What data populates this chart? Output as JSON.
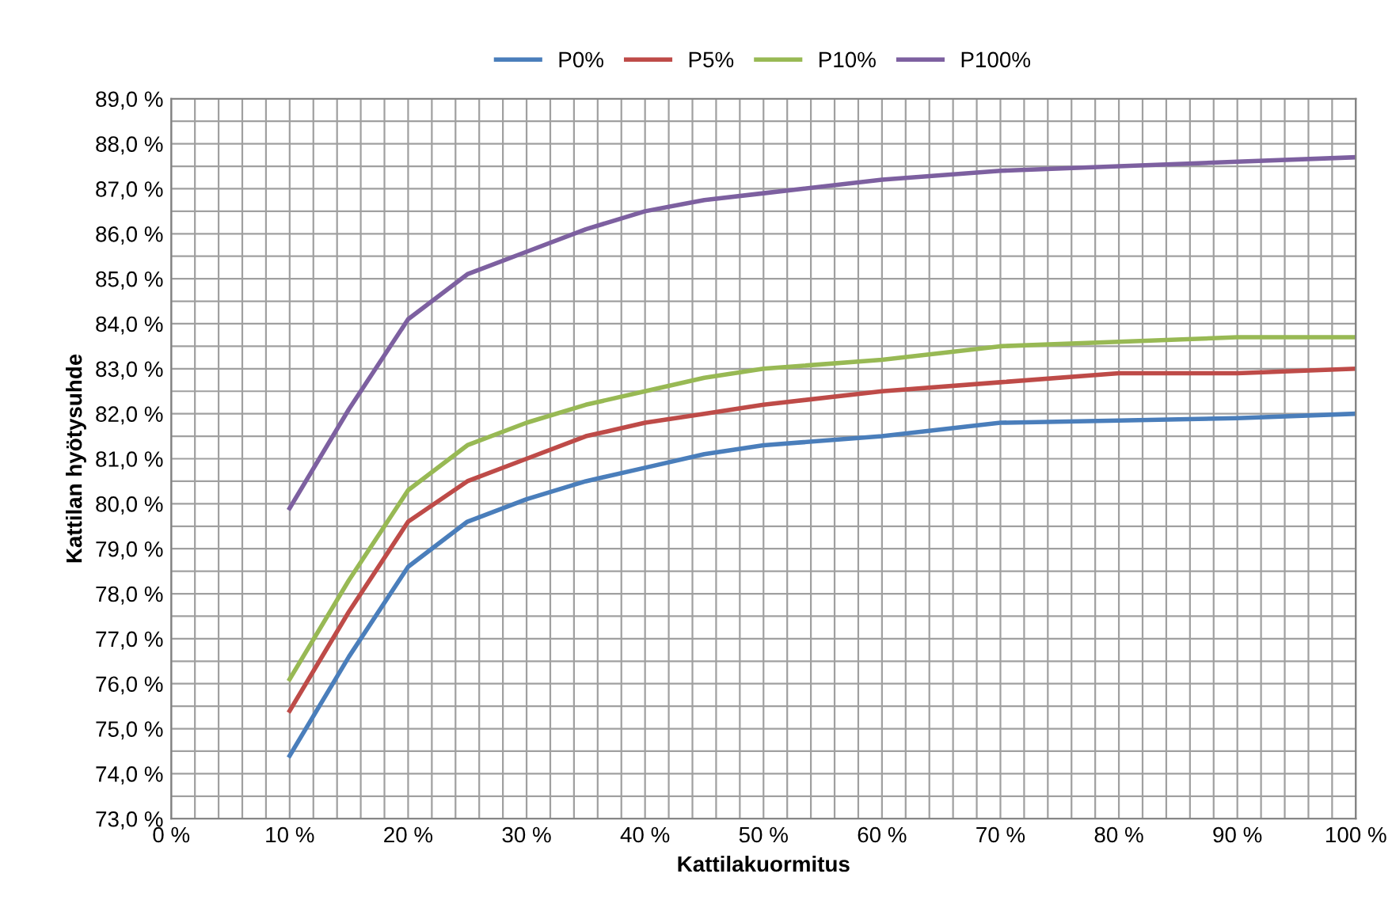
{
  "chart_data": {
    "type": "line",
    "xlabel": "Kattilakuormitus",
    "ylabel": "Kattilan hyötysuhde",
    "x": [
      10,
      15,
      20,
      25,
      30,
      35,
      40,
      45,
      50,
      60,
      70,
      80,
      90,
      100
    ],
    "series": [
      {
        "name": "P0%",
        "color": "#4a7ebb",
        "values": [
          74.4,
          76.6,
          78.6,
          79.6,
          80.1,
          80.5,
          80.8,
          81.1,
          81.3,
          81.5,
          81.8,
          81.85,
          81.9,
          82.0
        ]
      },
      {
        "name": "P5%",
        "color": "#be4b48",
        "values": [
          75.4,
          77.6,
          79.6,
          80.5,
          81.0,
          81.5,
          81.8,
          82.0,
          82.2,
          82.5,
          82.7,
          82.9,
          82.9,
          83.0
        ]
      },
      {
        "name": "P10%",
        "color": "#98b954",
        "values": [
          76.1,
          78.3,
          80.3,
          81.3,
          81.8,
          82.2,
          82.5,
          82.8,
          83.0,
          83.2,
          83.5,
          83.6,
          83.7,
          83.7
        ]
      },
      {
        "name": "P100%",
        "color": "#7d60a0",
        "values": [
          79.9,
          82.1,
          84.1,
          85.1,
          85.6,
          86.1,
          86.5,
          86.75,
          86.9,
          87.2,
          87.4,
          87.5,
          87.6,
          87.7
        ]
      }
    ],
    "xlim": [
      0,
      100
    ],
    "xticks": [
      {
        "value": 0,
        "label": "0 %"
      },
      {
        "value": 2,
        "label": null
      },
      {
        "value": 4,
        "label": null
      },
      {
        "value": 6,
        "label": null
      },
      {
        "value": 8,
        "label": null
      },
      {
        "value": 10,
        "label": "10 %"
      },
      {
        "value": 12,
        "label": null
      },
      {
        "value": 14,
        "label": null
      },
      {
        "value": 16,
        "label": null
      },
      {
        "value": 18,
        "label": null
      },
      {
        "value": 20,
        "label": "20 %"
      },
      {
        "value": 22,
        "label": null
      },
      {
        "value": 24,
        "label": null
      },
      {
        "value": 26,
        "label": null
      },
      {
        "value": 28,
        "label": null
      },
      {
        "value": 30,
        "label": "30 %"
      },
      {
        "value": 32,
        "label": null
      },
      {
        "value": 34,
        "label": null
      },
      {
        "value": 36,
        "label": null
      },
      {
        "value": 38,
        "label": null
      },
      {
        "value": 40,
        "label": "40 %"
      },
      {
        "value": 42,
        "label": null
      },
      {
        "value": 44,
        "label": null
      },
      {
        "value": 46,
        "label": null
      },
      {
        "value": 48,
        "label": null
      },
      {
        "value": 50,
        "label": "50 %"
      },
      {
        "value": 52,
        "label": null
      },
      {
        "value": 54,
        "label": null
      },
      {
        "value": 56,
        "label": null
      },
      {
        "value": 58,
        "label": null
      },
      {
        "value": 60,
        "label": "60 %"
      },
      {
        "value": 62,
        "label": null
      },
      {
        "value": 64,
        "label": null
      },
      {
        "value": 66,
        "label": null
      },
      {
        "value": 68,
        "label": null
      },
      {
        "value": 70,
        "label": "70 %"
      },
      {
        "value": 72,
        "label": null
      },
      {
        "value": 74,
        "label": null
      },
      {
        "value": 76,
        "label": null
      },
      {
        "value": 78,
        "label": null
      },
      {
        "value": 80,
        "label": "80 %"
      },
      {
        "value": 82,
        "label": null
      },
      {
        "value": 84,
        "label": null
      },
      {
        "value": 86,
        "label": null
      },
      {
        "value": 88,
        "label": null
      },
      {
        "value": 90,
        "label": "90 %"
      },
      {
        "value": 92,
        "label": null
      },
      {
        "value": 94,
        "label": null
      },
      {
        "value": 96,
        "label": null
      },
      {
        "value": 98,
        "label": null
      },
      {
        "value": 100,
        "label": "100 %"
      }
    ],
    "ylim": [
      73,
      89
    ],
    "yticks": [
      {
        "value": 73,
        "label": "73,0 %"
      },
      {
        "value": 73.5,
        "label": null
      },
      {
        "value": 74,
        "label": "74,0 %"
      },
      {
        "value": 74.5,
        "label": null
      },
      {
        "value": 75,
        "label": "75,0 %"
      },
      {
        "value": 75.5,
        "label": null
      },
      {
        "value": 76,
        "label": "76,0 %"
      },
      {
        "value": 76.5,
        "label": null
      },
      {
        "value": 77,
        "label": "77,0 %"
      },
      {
        "value": 77.5,
        "label": null
      },
      {
        "value": 78,
        "label": "78,0 %"
      },
      {
        "value": 78.5,
        "label": null
      },
      {
        "value": 79,
        "label": "79,0 %"
      },
      {
        "value": 79.5,
        "label": null
      },
      {
        "value": 80,
        "label": "80,0 %"
      },
      {
        "value": 80.5,
        "label": null
      },
      {
        "value": 81,
        "label": "81,0 %"
      },
      {
        "value": 81.5,
        "label": null
      },
      {
        "value": 82,
        "label": "82,0 %"
      },
      {
        "value": 82.5,
        "label": null
      },
      {
        "value": 83,
        "label": "83,0 %"
      },
      {
        "value": 83.5,
        "label": null
      },
      {
        "value": 84,
        "label": "84,0 %"
      },
      {
        "value": 84.5,
        "label": null
      },
      {
        "value": 85,
        "label": "85,0 %"
      },
      {
        "value": 85.5,
        "label": null
      },
      {
        "value": 86,
        "label": "86,0 %"
      },
      {
        "value": 86.5,
        "label": null
      },
      {
        "value": 87,
        "label": "87,0 %"
      },
      {
        "value": 87.5,
        "label": null
      },
      {
        "value": 88,
        "label": "88,0 %"
      },
      {
        "value": 88.5,
        "label": null
      },
      {
        "value": 89,
        "label": "89,0 %"
      }
    ],
    "grid": true,
    "legend": "top",
    "marker": "none",
    "line_style": "solid"
  }
}
